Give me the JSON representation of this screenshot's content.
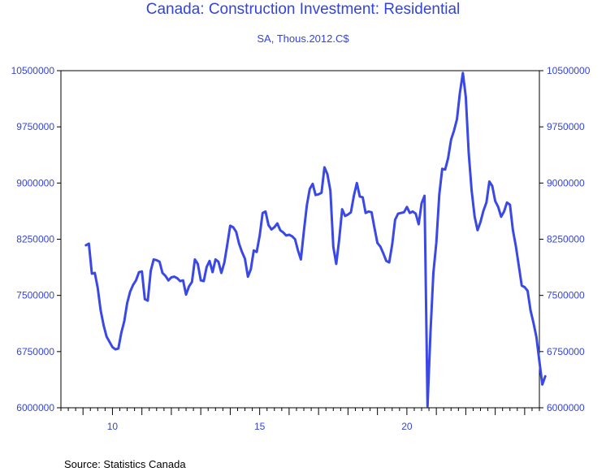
{
  "colors": {
    "title": "#3344dd",
    "series": "#3a48e6",
    "axis": "#000000"
  },
  "chart_data": {
    "type": "line",
    "title": "Canada: Construction Investment: Residential",
    "subtitle": "SA, Thous.2012.C$",
    "source": "Source:  Statistics Canada",
    "xlabel": "",
    "ylabel": "",
    "xlim": [
      2008.25,
      2024.5
    ],
    "ylim": [
      6000000,
      10500000
    ],
    "x_ticks": [
      10,
      15,
      20
    ],
    "y_ticks": [
      6000000,
      6750000,
      7500000,
      8250000,
      9000000,
      9750000,
      10500000
    ],
    "y_tick_labels": [
      "6000000",
      "6750000",
      "7500000",
      "8250000",
      "9000000",
      "9750000",
      "10500000"
    ],
    "grid": false,
    "series": [
      {
        "points": [
          [
            2009.1,
            8170000
          ],
          [
            2009.2,
            8190000
          ],
          [
            2009.3,
            7790000
          ],
          [
            2009.4,
            7800000
          ],
          [
            2009.5,
            7600000
          ],
          [
            2009.6,
            7300000
          ],
          [
            2009.7,
            7100000
          ],
          [
            2009.8,
            6950000
          ],
          [
            2009.9,
            6880000
          ],
          [
            2010.0,
            6810000
          ],
          [
            2010.1,
            6780000
          ],
          [
            2010.2,
            6790000
          ],
          [
            2010.3,
            7000000
          ],
          [
            2010.4,
            7150000
          ],
          [
            2010.5,
            7400000
          ],
          [
            2010.6,
            7550000
          ],
          [
            2010.7,
            7640000
          ],
          [
            2010.8,
            7700000
          ],
          [
            2010.9,
            7810000
          ],
          [
            2011.0,
            7820000
          ],
          [
            2011.1,
            7450000
          ],
          [
            2011.2,
            7430000
          ],
          [
            2011.3,
            7830000
          ],
          [
            2011.4,
            7980000
          ],
          [
            2011.5,
            7970000
          ],
          [
            2011.6,
            7950000
          ],
          [
            2011.7,
            7800000
          ],
          [
            2011.8,
            7760000
          ],
          [
            2011.9,
            7700000
          ],
          [
            2012.0,
            7740000
          ],
          [
            2012.1,
            7750000
          ],
          [
            2012.2,
            7730000
          ],
          [
            2012.3,
            7690000
          ],
          [
            2012.4,
            7700000
          ],
          [
            2012.5,
            7510000
          ],
          [
            2012.6,
            7620000
          ],
          [
            2012.7,
            7680000
          ],
          [
            2012.8,
            7980000
          ],
          [
            2012.9,
            7920000
          ],
          [
            2013.0,
            7700000
          ],
          [
            2013.1,
            7690000
          ],
          [
            2013.2,
            7880000
          ],
          [
            2013.3,
            7960000
          ],
          [
            2013.4,
            7810000
          ],
          [
            2013.5,
            7980000
          ],
          [
            2013.6,
            7950000
          ],
          [
            2013.7,
            7800000
          ],
          [
            2013.8,
            7940000
          ],
          [
            2013.9,
            8180000
          ],
          [
            2014.0,
            8430000
          ],
          [
            2014.1,
            8410000
          ],
          [
            2014.2,
            8350000
          ],
          [
            2014.3,
            8190000
          ],
          [
            2014.4,
            8080000
          ],
          [
            2014.5,
            7990000
          ],
          [
            2014.6,
            7750000
          ],
          [
            2014.7,
            7850000
          ],
          [
            2014.8,
            8100000
          ],
          [
            2014.9,
            8080000
          ],
          [
            2015.0,
            8300000
          ],
          [
            2015.1,
            8600000
          ],
          [
            2015.2,
            8620000
          ],
          [
            2015.3,
            8440000
          ],
          [
            2015.4,
            8380000
          ],
          [
            2015.5,
            8410000
          ],
          [
            2015.6,
            8460000
          ],
          [
            2015.7,
            8370000
          ],
          [
            2015.8,
            8340000
          ],
          [
            2015.9,
            8300000
          ],
          [
            2016.0,
            8310000
          ],
          [
            2016.1,
            8290000
          ],
          [
            2016.2,
            8250000
          ],
          [
            2016.3,
            8100000
          ],
          [
            2016.4,
            7980000
          ],
          [
            2016.5,
            8350000
          ],
          [
            2016.6,
            8700000
          ],
          [
            2016.7,
            8920000
          ],
          [
            2016.8,
            8990000
          ],
          [
            2016.9,
            8840000
          ],
          [
            2017.0,
            8850000
          ],
          [
            2017.1,
            8870000
          ],
          [
            2017.2,
            9210000
          ],
          [
            2017.3,
            9120000
          ],
          [
            2017.4,
            8900000
          ],
          [
            2017.5,
            8150000
          ],
          [
            2017.6,
            7920000
          ],
          [
            2017.7,
            8240000
          ],
          [
            2017.8,
            8650000
          ],
          [
            2017.9,
            8560000
          ],
          [
            2018.0,
            8580000
          ],
          [
            2018.1,
            8610000
          ],
          [
            2018.2,
            8830000
          ],
          [
            2018.3,
            9000000
          ],
          [
            2018.4,
            8820000
          ],
          [
            2018.5,
            8810000
          ],
          [
            2018.6,
            8600000
          ],
          [
            2018.7,
            8620000
          ],
          [
            2018.8,
            8610000
          ],
          [
            2018.9,
            8400000
          ],
          [
            2019.0,
            8200000
          ],
          [
            2019.1,
            8150000
          ],
          [
            2019.2,
            8060000
          ],
          [
            2019.3,
            7960000
          ],
          [
            2019.4,
            7940000
          ],
          [
            2019.5,
            8180000
          ],
          [
            2019.6,
            8510000
          ],
          [
            2019.7,
            8590000
          ],
          [
            2019.8,
            8600000
          ],
          [
            2019.9,
            8610000
          ],
          [
            2020.0,
            8680000
          ],
          [
            2020.1,
            8600000
          ],
          [
            2020.2,
            8620000
          ],
          [
            2020.3,
            8590000
          ],
          [
            2020.4,
            8450000
          ],
          [
            2020.5,
            8730000
          ],
          [
            2020.6,
            8830000
          ],
          [
            2020.7,
            6020000
          ],
          [
            2020.8,
            7000000
          ],
          [
            2020.9,
            7800000
          ],
          [
            2021.0,
            8200000
          ],
          [
            2021.1,
            8850000
          ],
          [
            2021.2,
            9190000
          ],
          [
            2021.3,
            9180000
          ],
          [
            2021.4,
            9330000
          ],
          [
            2021.5,
            9580000
          ],
          [
            2021.6,
            9700000
          ],
          [
            2021.7,
            9850000
          ],
          [
            2021.8,
            10200000
          ],
          [
            2021.9,
            10470000
          ],
          [
            2022.0,
            10150000
          ],
          [
            2022.1,
            9400000
          ],
          [
            2022.2,
            8900000
          ],
          [
            2022.3,
            8550000
          ],
          [
            2022.4,
            8370000
          ],
          [
            2022.5,
            8480000
          ],
          [
            2022.6,
            8630000
          ],
          [
            2022.7,
            8740000
          ],
          [
            2022.8,
            9020000
          ],
          [
            2022.9,
            8960000
          ],
          [
            2023.0,
            8760000
          ],
          [
            2023.1,
            8680000
          ],
          [
            2023.2,
            8550000
          ],
          [
            2023.3,
            8620000
          ],
          [
            2023.4,
            8740000
          ],
          [
            2023.5,
            8710000
          ],
          [
            2023.6,
            8370000
          ],
          [
            2023.7,
            8160000
          ],
          [
            2023.8,
            7900000
          ],
          [
            2023.9,
            7630000
          ],
          [
            2024.0,
            7610000
          ],
          [
            2024.1,
            7560000
          ],
          [
            2024.2,
            7300000
          ],
          [
            2024.3,
            7130000
          ],
          [
            2024.4,
            6940000
          ],
          [
            2024.5,
            6620000
          ],
          [
            2024.6,
            6310000
          ],
          [
            2024.7,
            6420000
          ]
        ]
      }
    ]
  }
}
